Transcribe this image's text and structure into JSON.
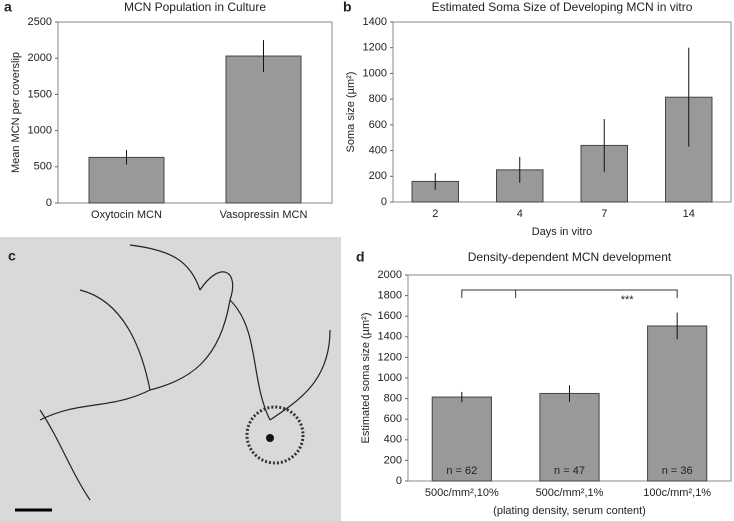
{
  "chart_data": [
    {
      "type": "bar",
      "panel": "a",
      "title": "MCN Population in Culture",
      "y_label": "Mean MCN per coverslip",
      "categories": [
        "Oxytocin MCN",
        "Vasopressin MCN"
      ],
      "values": [
        630,
        2030
      ],
      "errors": [
        100,
        220
      ],
      "color": "#999999",
      "ylim": [
        0,
        2500
      ],
      "yticks": [
        0,
        500,
        1000,
        1500,
        2000,
        2500
      ]
    },
    {
      "type": "bar",
      "panel": "b",
      "title": "Estimated Soma Size of Developing MCN in vitro",
      "y_label": "Soma size (µm²)",
      "x_label": "Days in vitro",
      "categories": [
        "2",
        "4",
        "7",
        "14"
      ],
      "values": [
        160,
        250,
        440,
        815
      ],
      "errors": [
        65,
        100,
        205,
        385
      ],
      "color": "#999999",
      "ylim": [
        0,
        1400
      ],
      "yticks": [
        0,
        200,
        400,
        600,
        800,
        1000,
        1200,
        1400
      ]
    },
    {
      "type": "image",
      "panel": "c"
    },
    {
      "type": "bar",
      "panel": "d",
      "title": "Density-dependent MCN development",
      "y_label": "Estimated soma size (µm²)",
      "x_label": "(plating density, serum content)",
      "categories": [
        "500c/mm²,10%",
        "500c/mm²,1%",
        "100c/mm²,1%"
      ],
      "values": [
        815,
        850,
        1505
      ],
      "errors": [
        50,
        80,
        130
      ],
      "bar_labels": [
        "n = 62",
        "n = 47",
        "n = 36"
      ],
      "significance": "***",
      "color": "#999999",
      "ylim": [
        0,
        2000
      ],
      "yticks": [
        0,
        200,
        400,
        600,
        800,
        1000,
        1200,
        1400,
        1600,
        1800,
        2000
      ]
    }
  ]
}
